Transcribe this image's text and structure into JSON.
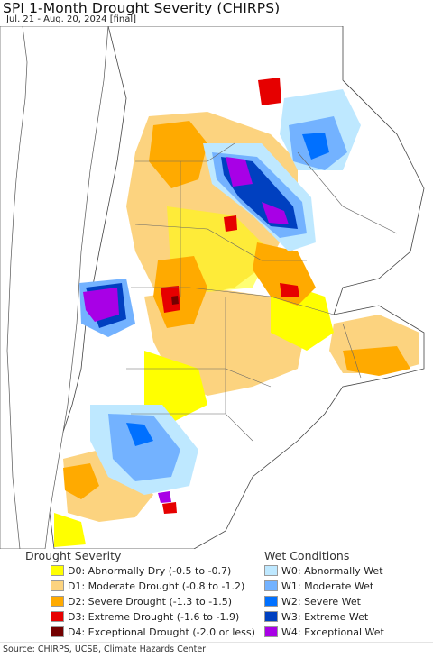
{
  "title": "SPI 1-Month Drought Severity (CHIRPS)",
  "subtitle": "Jul. 21 - Aug. 20, 2024 [final]",
  "legend": {
    "drought_heading": "Drought Severity",
    "wet_heading": "Wet Conditions",
    "drought": [
      {
        "label": "D0: Abnormally Dry (-0.5 to -0.7)",
        "color": "#ffff00"
      },
      {
        "label": "D1: Moderate Drought (-0.8 to -1.2)",
        "color": "#fcd37f"
      },
      {
        "label": "D2: Severe Drought (-1.3 to -1.5)",
        "color": "#ffaa00"
      },
      {
        "label": "D3: Extreme Drought (-1.6 to -1.9)",
        "color": "#e60000"
      },
      {
        "label": "D4: Exceptional Drought (-2.0 or less)",
        "color": "#730000"
      }
    ],
    "wet": [
      {
        "label": "W0: Abnormally Wet",
        "color": "#bee8ff"
      },
      {
        "label": "W1: Moderate Wet",
        "color": "#73b2ff"
      },
      {
        "label": "W2: Severe Wet",
        "color": "#0070ff"
      },
      {
        "label": "W3: Extreme Wet",
        "color": "#0040c0"
      },
      {
        "label": "W4: Exceptional Wet",
        "color": "#a800e6"
      }
    ]
  },
  "source": "Source: CHIRPS, UCSB, Climate Hazards Center",
  "colors": {
    "ocean": "#ffffff",
    "neighbor_land": "#ffffff",
    "borders": "#555555"
  }
}
